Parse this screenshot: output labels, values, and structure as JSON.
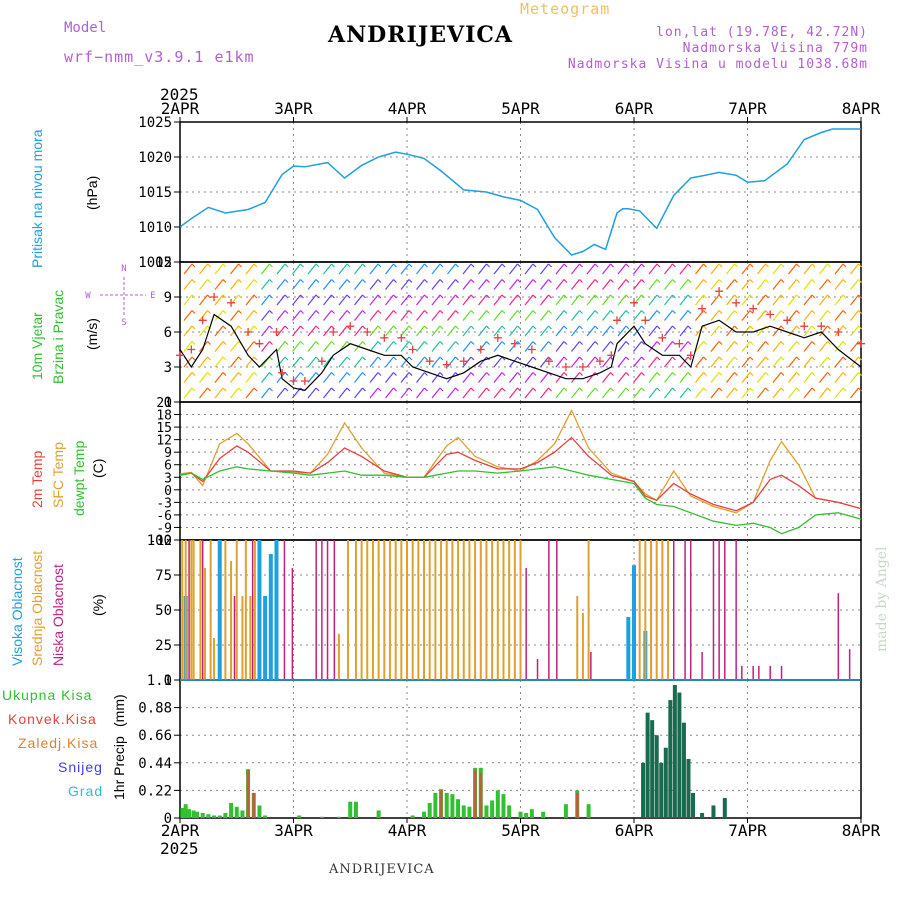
{
  "header": {
    "title": "ANDRIJEVICA",
    "subtitle": "Meteogram",
    "model_label": "Model",
    "model_name": "wrf−nmm_v3.9.1 e1km",
    "lonlat": "lon,lat (19.78E, 42.72N)",
    "altitude": "Nadmorska Visina 779m",
    "model_altitude": "Nadmorska Visina u modelu 1038.68m",
    "year_top": "2025",
    "year_bottom": "2025",
    "footer": "ANDRIJEVICA",
    "watermark": "made by Angel"
  },
  "colors": {
    "pressure": "#1fa0e0",
    "temp2m": "#e84040",
    "sfctemp": "#e0a030",
    "dewpt": "#30c030",
    "high_cloud": "#1fa0e0",
    "mid_cloud": "#e0a030",
    "low_cloud": "#c02080",
    "total_precip": "#30c030",
    "conv_precip": "#e84040",
    "strat_precip": "#e08030",
    "snow": "#4040e0",
    "hail": "#30c0c0",
    "bar_dark": "#1a6a50",
    "wind_speed": "#000000",
    "gust": "#e84040",
    "grid": "#888888"
  },
  "chart_data": [
    {
      "type": "line",
      "panel": "pressure",
      "ylabel": "Pritisak na nivou mora",
      "unit": "(hPa)",
      "ylim": [
        1005,
        1025
      ],
      "yticks": [
        1005,
        1010,
        1015,
        1020,
        1025
      ],
      "x_days": [
        0,
        0.1,
        0.25,
        0.4,
        0.6,
        0.75,
        0.9,
        1.0,
        1.1,
        1.3,
        1.45,
        1.6,
        1.75,
        1.9,
        2.0,
        2.15,
        2.3,
        2.5,
        2.7,
        2.85,
        3.0,
        3.15,
        3.3,
        3.45,
        3.55,
        3.65,
        3.75,
        3.85,
        3.9,
        3.95,
        4.05,
        4.2,
        4.35,
        4.5,
        4.6,
        4.75,
        4.9,
        5.0,
        5.15,
        5.35,
        5.5,
        5.65,
        5.75,
        5.85,
        6.0
      ],
      "values": [
        1010.0,
        1011.2,
        1012.8,
        1012.0,
        1012.5,
        1013.5,
        1017.5,
        1018.7,
        1018.6,
        1019.2,
        1017.0,
        1018.8,
        1020.0,
        1020.7,
        1020.4,
        1019.8,
        1018.0,
        1015.3,
        1015.0,
        1014.3,
        1013.8,
        1012.5,
        1008.5,
        1006.0,
        1006.5,
        1007.5,
        1006.8,
        1012.0,
        1012.6,
        1012.6,
        1012.3,
        1009.8,
        1014.5,
        1017.0,
        1017.3,
        1017.8,
        1017.4,
        1016.4,
        1016.6,
        1019.0,
        1022.5,
        1023.5,
        1024.0,
        1024.0,
        1024.0
      ]
    },
    {
      "type": "line",
      "panel": "wind",
      "ylabel": "10m Vjetar Brzina i Pravac",
      "unit": "(m/s)",
      "ylim": [
        0,
        12
      ],
      "yticks": [
        0,
        3,
        6,
        9,
        12
      ],
      "compass": [
        "N",
        "W",
        "E",
        "S"
      ],
      "x_days": [
        0,
        0.1,
        0.2,
        0.3,
        0.45,
        0.6,
        0.7,
        0.85,
        0.9,
        1.0,
        1.1,
        1.25,
        1.35,
        1.5,
        1.65,
        1.8,
        1.95,
        2.05,
        2.2,
        2.35,
        2.5,
        2.65,
        2.8,
        2.95,
        3.1,
        3.25,
        3.4,
        3.55,
        3.7,
        3.8,
        3.85,
        4.0,
        4.1,
        4.25,
        4.4,
        4.5,
        4.6,
        4.75,
        4.9,
        5.05,
        5.2,
        5.35,
        5.5,
        5.65,
        5.8,
        6.0
      ],
      "speed": [
        4.5,
        3.0,
        4.5,
        7.5,
        6.5,
        4.0,
        3.0,
        4.5,
        2.0,
        1.2,
        1.0,
        2.5,
        4.0,
        5.0,
        4.5,
        4.0,
        4.0,
        3.0,
        2.5,
        2.0,
        2.5,
        3.5,
        4.0,
        3.5,
        3.0,
        2.5,
        2.0,
        2.0,
        2.5,
        3.0,
        5.0,
        6.5,
        5.0,
        4.0,
        4.0,
        3.0,
        6.5,
        7.0,
        6.0,
        6.0,
        6.5,
        6.0,
        5.5,
        6.0,
        4.5,
        3.0
      ],
      "gust": [
        4.0,
        4.5,
        7.0,
        9.0,
        8.5,
        6.0,
        5.0,
        6.0,
        2.5,
        1.8,
        1.8,
        3.5,
        6.0,
        6.5,
        6.0,
        5.5,
        5.5,
        4.5,
        3.5,
        3.2,
        3.5,
        4.5,
        5.5,
        5.0,
        4.5,
        3.5,
        3.0,
        3.0,
        3.5,
        4.0,
        7.0,
        8.5,
        7.0,
        5.5,
        5.0,
        4.0,
        8.0,
        9.5,
        8.5,
        8.0,
        7.5,
        7.0,
        6.5,
        6.5,
        6.0,
        5.0
      ]
    },
    {
      "type": "line",
      "panel": "temperature",
      "ylabel": [
        "2m Temp",
        "SFC Temp",
        "dewpt Temp"
      ],
      "unit": "(C)",
      "ylim": [
        -12,
        21
      ],
      "yticks": [
        -12,
        -9,
        -6,
        -3,
        0,
        3,
        6,
        9,
        12,
        15,
        18,
        21
      ],
      "x_days": [
        0,
        0.1,
        0.2,
        0.35,
        0.5,
        0.6,
        0.8,
        1.0,
        1.15,
        1.3,
        1.45,
        1.6,
        1.8,
        2.0,
        2.15,
        2.35,
        2.45,
        2.6,
        2.8,
        3.0,
        3.15,
        3.3,
        3.45,
        3.6,
        3.8,
        4.0,
        4.1,
        4.2,
        4.35,
        4.5,
        4.7,
        4.9,
        5.05,
        5.2,
        5.3,
        5.45,
        5.6,
        5.8,
        6.0
      ],
      "t2m": [
        3.5,
        4.0,
        2.0,
        7.5,
        10.5,
        9.0,
        4.5,
        4.5,
        4.0,
        6.5,
        10.0,
        8.0,
        4.5,
        3.0,
        3.0,
        8.5,
        9.0,
        7.0,
        5.0,
        5.0,
        6.5,
        9.0,
        12.5,
        8.0,
        3.5,
        2.0,
        -1.5,
        -2.5,
        1.5,
        -1.0,
        -3.5,
        -5.0,
        -3.0,
        2.5,
        3.5,
        1.0,
        -2.0,
        -3.0,
        -4.5
      ],
      "sfc": [
        3.8,
        4.2,
        1.0,
        11.0,
        13.5,
        11.0,
        4.5,
        4.2,
        4.0,
        8.5,
        16.0,
        10.0,
        4.0,
        3.0,
        3.0,
        10.5,
        12.5,
        8.0,
        5.5,
        4.5,
        7.0,
        11.0,
        19.0,
        10.0,
        4.0,
        2.0,
        -1.0,
        -2.5,
        4.5,
        -1.5,
        -4.0,
        -5.5,
        -3.0,
        7.0,
        11.5,
        6.0,
        -2.0,
        -3.0,
        -4.5
      ],
      "dewpt": [
        3.5,
        4.0,
        2.5,
        4.5,
        5.5,
        5.0,
        4.5,
        4.0,
        3.5,
        4.0,
        4.5,
        3.5,
        3.5,
        3.0,
        3.0,
        4.0,
        4.5,
        4.5,
        4.0,
        4.5,
        5.0,
        5.5,
        4.5,
        3.5,
        2.5,
        1.5,
        -2.0,
        -3.5,
        -4.0,
        -5.5,
        -7.5,
        -8.5,
        -8.0,
        -9.0,
        -10.5,
        -9.0,
        -6.0,
        -5.5,
        -7.0
      ]
    },
    {
      "type": "bar",
      "panel": "clouds",
      "ylabel": [
        "Visoka Oblacnost",
        "Srednja Oblacnost",
        "Niska Oblacnost"
      ],
      "unit": "(%)",
      "ylim": [
        0,
        100
      ],
      "yticks": [
        0,
        25,
        50,
        75,
        100
      ],
      "series": [
        {
          "name": "Visoka Oblacnost",
          "x_days": [
            0.05,
            0.35,
            0.7,
            0.75,
            0.8,
            0.85,
            3.95,
            4.0,
            4.1
          ],
          "values": [
            60,
            100,
            100,
            60,
            90,
            100,
            45,
            82,
            35
          ]
        },
        {
          "name": "Srednja Oblacnost",
          "x_days": [
            0.02,
            0.05,
            0.1,
            0.12,
            0.18,
            0.22,
            0.27,
            0.3,
            0.4,
            0.45,
            0.5,
            0.55,
            0.58,
            0.62,
            0.66,
            1.4,
            1.48,
            1.55,
            1.6,
            1.65,
            1.7,
            1.75,
            1.8,
            1.85,
            1.9,
            1.95,
            2.0,
            2.05,
            2.1,
            2.15,
            2.2,
            2.25,
            2.3,
            2.35,
            2.4,
            2.45,
            2.5,
            2.55,
            2.6,
            2.65,
            2.7,
            2.75,
            2.8,
            2.85,
            2.9,
            2.95,
            3.0,
            3.5,
            3.55,
            3.6,
            4.05,
            4.1,
            4.15,
            4.2,
            4.25,
            4.3
          ],
          "values": [
            100,
            100,
            100,
            100,
            100,
            80,
            100,
            30,
            100,
            85,
            100,
            60,
            100,
            60,
            100,
            33,
            100,
            100,
            100,
            100,
            100,
            100,
            100,
            100,
            100,
            100,
            100,
            100,
            100,
            100,
            100,
            100,
            100,
            100,
            100,
            100,
            100,
            100,
            100,
            100,
            100,
            100,
            100,
            100,
            100,
            100,
            100,
            60,
            48,
            100,
            100,
            100,
            100,
            100,
            100,
            100
          ]
        },
        {
          "name": "Niska Oblacnost",
          "x_days": [
            0.08,
            0.2,
            0.48,
            0.64,
            0.92,
            0.99,
            1.2,
            1.25,
            1.3,
            1.36,
            3.05,
            3.15,
            3.25,
            3.32,
            3.62,
            4.35,
            4.45,
            4.5,
            4.6,
            4.7,
            4.75,
            4.8,
            4.9,
            4.95,
            5.05,
            5.1,
            5.2,
            5.3,
            5.8,
            5.9
          ],
          "values": [
            100,
            100,
            60,
            100,
            100,
            80,
            100,
            100,
            100,
            100,
            80,
            15,
            100,
            100,
            20,
            100,
            100,
            100,
            20,
            100,
            100,
            100,
            100,
            10,
            10,
            10,
            10,
            10,
            62,
            22
          ]
        }
      ]
    },
    {
      "type": "bar",
      "panel": "precip",
      "ylabel": "1hr Precip",
      "unit": "(mm)",
      "ylim": [
        0,
        1.1
      ],
      "yticks": [
        0,
        0.22,
        0.44,
        0.66,
        0.88,
        1.1
      ],
      "legend": [
        "Ukupna Kisa",
        "Konvek.Kisa",
        "Zaledj.Kisa",
        "Snijeg",
        "Grad"
      ],
      "x_days": [
        0.02,
        0.05,
        0.08,
        0.12,
        0.15,
        0.2,
        0.25,
        0.3,
        0.35,
        0.4,
        0.45,
        0.5,
        0.55,
        0.6,
        0.65,
        0.7,
        0.75,
        1.05,
        1.25,
        1.4,
        1.5,
        1.55,
        1.75,
        2.05,
        2.15,
        2.2,
        2.25,
        2.3,
        2.35,
        2.4,
        2.45,
        2.5,
        2.55,
        2.6,
        2.65,
        2.7,
        2.75,
        2.8,
        2.85,
        2.9,
        3.0,
        3.05,
        3.1,
        3.2,
        3.4,
        3.5,
        3.6,
        4.08,
        4.12,
        4.16,
        4.2,
        4.24,
        4.28,
        4.32,
        4.36,
        4.4,
        4.44,
        4.48,
        4.52,
        4.6,
        4.7,
        4.8
      ],
      "values": [
        0.08,
        0.11,
        0.07,
        0.06,
        0.05,
        0.04,
        0.03,
        0.02,
        0.02,
        0.04,
        0.12,
        0.09,
        0.06,
        0.39,
        0.2,
        0.1,
        0.02,
        0.02,
        0.01,
        0.01,
        0.13,
        0.13,
        0.06,
        0.02,
        0.05,
        0.12,
        0.2,
        0.23,
        0.2,
        0.19,
        0.15,
        0.1,
        0.09,
        0.4,
        0.4,
        0.1,
        0.14,
        0.22,
        0.19,
        0.1,
        0.05,
        0.04,
        0.07,
        0.05,
        0.11,
        0.22,
        0.11,
        0.44,
        0.84,
        0.78,
        0.66,
        0.44,
        0.56,
        0.94,
        1.06,
        1.0,
        0.76,
        0.47,
        0.2,
        0.04,
        0.1,
        0.16
      ],
      "convective_x_days": [
        0.6,
        0.65,
        2.3,
        2.6,
        2.65,
        3.5
      ],
      "convective": [
        0.38,
        0.2,
        0.22,
        0.38,
        0.36,
        0.2
      ],
      "dark_from_day": 4.08
    }
  ],
  "x_axis": {
    "ticks": [
      "2APR",
      "3APR",
      "4APR",
      "5APR",
      "6APR",
      "7APR",
      "8APR"
    ]
  },
  "panel_labels": {
    "pressure_name": "Pritisak na nivou mora",
    "pressure_unit": "(hPa)",
    "wind_name_1": "10m Vjetar",
    "wind_name_2": "Brzina i Pravac",
    "wind_unit": "(m/s)",
    "temp_name_1": "2m Temp",
    "temp_name_2": "SFC Temp",
    "temp_name_3": "dewpt Temp",
    "temp_unit": "(C)",
    "cloud_name_1": "Visoka Oblacnost",
    "cloud_name_2": "Srednja Oblacnost",
    "cloud_name_3": "Niska Oblacnost",
    "cloud_unit": "(%)",
    "precip_name": "1hr Precip",
    "precip_unit": "(mm)"
  },
  "precip_legend": [
    {
      "label": "Ukupna Kisa",
      "color": "#30c030"
    },
    {
      "label": "Konvek.Kisa",
      "color": "#e84040"
    },
    {
      "label": "Zaledj.Kisa",
      "color": "#e08030"
    },
    {
      "label": "Snijeg",
      "color": "#4040e0"
    },
    {
      "label": "Grad",
      "color": "#30c0c0"
    }
  ]
}
